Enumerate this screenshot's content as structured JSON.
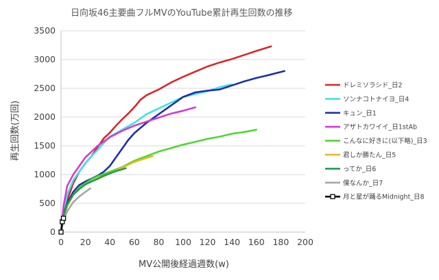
{
  "chart_data": {
    "type": "line",
    "title": "日向坂46主要曲フルMVのYouTube累計再生回数の推移",
    "xlabel": "MV公開後経過週数(w)",
    "ylabel": "再生回数(万回)",
    "xlim": [
      0,
      200
    ],
    "ylim": [
      0,
      3500
    ],
    "xticks": [
      "0",
      "20",
      "40",
      "60",
      "80",
      "100",
      "120",
      "140",
      "160",
      "180",
      "200"
    ],
    "yticks": [
      "0",
      "500",
      "1000",
      "1500",
      "2000",
      "2500",
      "3000",
      "3500"
    ],
    "grid": "horizontal",
    "legend_position": "right",
    "series": [
      {
        "name": "ドレミソラシド_日2",
        "color": "#d62728",
        "x": [
          0,
          2,
          5,
          10,
          15,
          20,
          25,
          30,
          35,
          40,
          45,
          50,
          55,
          60,
          65,
          70,
          80,
          90,
          100,
          110,
          120,
          130,
          140,
          150,
          160,
          172
        ],
        "y": [
          0,
          250,
          550,
          850,
          1050,
          1200,
          1320,
          1480,
          1630,
          1730,
          1850,
          1960,
          2060,
          2170,
          2300,
          2380,
          2480,
          2600,
          2700,
          2790,
          2880,
          2950,
          3010,
          3080,
          3150,
          3230
        ]
      },
      {
        "name": "ソンナコトナイヨ_日4",
        "color": "#40e0e8",
        "x": [
          0,
          2,
          5,
          10,
          15,
          20,
          25,
          30,
          35,
          40,
          50,
          60,
          70,
          80,
          90,
          100,
          110,
          120,
          130,
          140
        ],
        "y": [
          0,
          350,
          650,
          900,
          1050,
          1200,
          1320,
          1430,
          1550,
          1660,
          1780,
          1900,
          2050,
          2150,
          2250,
          2350,
          2400,
          2450,
          2520,
          2570
        ]
      },
      {
        "name": "キュン_日1",
        "color": "#1f2fa8",
        "x": [
          0,
          2,
          5,
          10,
          15,
          20,
          25,
          30,
          35,
          40,
          45,
          50,
          55,
          60,
          70,
          80,
          90,
          100,
          110,
          120,
          130,
          140,
          150,
          160,
          170,
          183
        ],
        "y": [
          0,
          300,
          500,
          700,
          820,
          880,
          930,
          980,
          1050,
          1150,
          1300,
          1450,
          1600,
          1720,
          1900,
          2050,
          2200,
          2350,
          2430,
          2460,
          2480,
          2550,
          2620,
          2680,
          2730,
          2800
        ]
      },
      {
        "name": "アザトカワイイ_日1stAb",
        "color": "#d63ad0",
        "x": [
          0,
          2,
          5,
          10,
          15,
          20,
          25,
          30,
          40,
          50,
          60,
          70,
          80,
          90,
          100,
          110
        ],
        "y": [
          0,
          450,
          800,
          1000,
          1150,
          1300,
          1400,
          1500,
          1650,
          1760,
          1850,
          1920,
          1990,
          2060,
          2110,
          2170
        ]
      },
      {
        "name": "こんなに好きに(以下略)_日3",
        "color": "#4fd62f",
        "x": [
          0,
          2,
          5,
          10,
          15,
          20,
          25,
          30,
          40,
          50,
          60,
          70,
          80,
          90,
          100,
          110,
          120,
          130,
          140,
          150,
          160
        ],
        "y": [
          0,
          250,
          450,
          650,
          780,
          850,
          920,
          970,
          1050,
          1130,
          1240,
          1320,
          1400,
          1460,
          1520,
          1570,
          1620,
          1660,
          1710,
          1740,
          1780
        ]
      },
      {
        "name": "君しか勝たん_日5",
        "color": "#e6b81a",
        "x": [
          0,
          2,
          5,
          10,
          15,
          20,
          25,
          30,
          40,
          50,
          60,
          70,
          75
        ],
        "y": [
          0,
          250,
          450,
          650,
          750,
          830,
          880,
          920,
          1020,
          1120,
          1220,
          1290,
          1320
        ]
      },
      {
        "name": "ってか_日6",
        "color": "#229a55",
        "x": [
          0,
          2,
          5,
          10,
          15,
          20,
          25,
          30,
          35,
          40,
          45,
          50,
          53
        ],
        "y": [
          0,
          280,
          480,
          650,
          750,
          830,
          880,
          930,
          980,
          1020,
          1060,
          1090,
          1110
        ]
      },
      {
        "name": "僕なんか_日7",
        "color": "#a6a6a6",
        "x": [
          0,
          2,
          5,
          10,
          15,
          20,
          24
        ],
        "y": [
          0,
          200,
          360,
          520,
          620,
          700,
          760
        ]
      },
      {
        "name": "月と星が踊るMidnight_日8",
        "color": "#000000",
        "marker": "square",
        "x": [
          0,
          1,
          2
        ],
        "y": [
          0,
          180,
          240
        ]
      }
    ]
  }
}
